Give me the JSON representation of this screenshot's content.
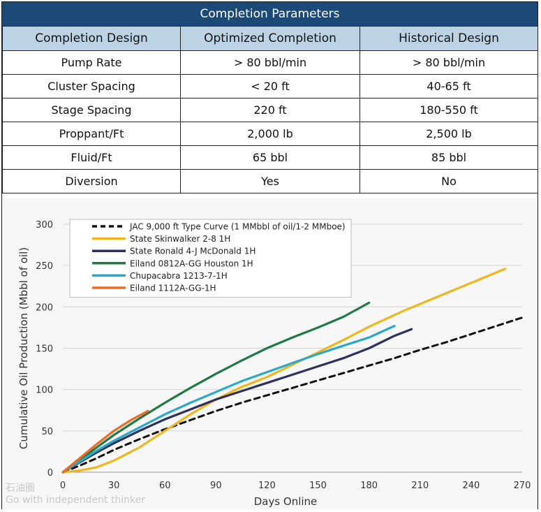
{
  "table": {
    "title": "Completion Parameters",
    "headers": [
      "Completion Design",
      "Optimized Completion",
      "Historical Design"
    ],
    "rows": [
      [
        "Pump Rate",
        "> 80 bbl/min",
        "> 80 bbl/min"
      ],
      [
        "Cluster Spacing",
        "< 20 ft",
        "40-65 ft"
      ],
      [
        "Stage Spacing",
        "220 ft",
        "180-550 ft"
      ],
      [
        "Proppant/Ft",
        "2,000 lb",
        "2,500 lb"
      ],
      [
        "Fluid/Ft",
        "65 bbl",
        "85 bbl"
      ],
      [
        "Diversion",
        "Yes",
        "No"
      ]
    ]
  },
  "chart_data": {
    "type": "line",
    "xlabel": "Days Online",
    "ylabel": "Cumulative Oil Production (Mbbl of oil)",
    "xlim": [
      0,
      270
    ],
    "ylim": [
      0,
      300
    ],
    "xticks": [
      0,
      30,
      60,
      90,
      120,
      150,
      180,
      210,
      240,
      270
    ],
    "yticks": [
      0,
      50,
      100,
      150,
      200,
      250,
      300
    ],
    "grid": "horizontal",
    "legend": "top-left",
    "series": [
      {
        "name": "JAC 9,000 ft Type Curve (1 MMbbl of oil/1-2 MMboe)",
        "color": "#111111",
        "dash": true,
        "x": [
          0,
          10,
          20,
          30,
          45,
          60,
          75,
          90,
          105,
          120,
          135,
          150,
          165,
          180,
          195,
          210,
          225,
          240,
          255,
          270
        ],
        "y": [
          0,
          8,
          17,
          27,
          40,
          52,
          63,
          74,
          84,
          93,
          102,
          111,
          120,
          129,
          138,
          148,
          157,
          167,
          177,
          187
        ]
      },
      {
        "name": "State Skinwalker 2-8 1H",
        "color": "#f2b61c",
        "dash": false,
        "x": [
          0,
          10,
          20,
          30,
          45,
          60,
          75,
          90,
          105,
          120,
          135,
          150,
          165,
          180,
          200,
          220,
          240,
          260
        ],
        "y": [
          0,
          2,
          6,
          14,
          30,
          50,
          70,
          88,
          103,
          115,
          130,
          145,
          160,
          176,
          195,
          212,
          229,
          246
        ]
      },
      {
        "name": "State Ronald 4-J McDonald 1H",
        "color": "#2e3060",
        "dash": false,
        "x": [
          0,
          10,
          20,
          30,
          45,
          60,
          75,
          90,
          105,
          120,
          135,
          150,
          165,
          180,
          195,
          205
        ],
        "y": [
          0,
          12,
          24,
          35,
          50,
          64,
          76,
          88,
          98,
          108,
          118,
          128,
          138,
          150,
          165,
          173
        ]
      },
      {
        "name": "Eiland 0812A-GG Houston 1H",
        "color": "#217a45",
        "dash": false,
        "x": [
          0,
          10,
          20,
          30,
          45,
          60,
          75,
          90,
          105,
          120,
          135,
          150,
          165,
          180
        ],
        "y": [
          0,
          15,
          30,
          45,
          65,
          84,
          102,
          119,
          135,
          150,
          163,
          175,
          188,
          205
        ]
      },
      {
        "name": "Chupacabra 1213-7-1H",
        "color": "#29a9c9",
        "dash": false,
        "x": [
          0,
          10,
          20,
          30,
          45,
          60,
          75,
          90,
          105,
          120,
          135,
          150,
          165,
          180,
          195
        ],
        "y": [
          0,
          13,
          26,
          38,
          54,
          70,
          84,
          97,
          110,
          121,
          132,
          143,
          153,
          163,
          177
        ]
      },
      {
        "name": "Eiland 1112A-GG-1H",
        "color": "#ef6a23",
        "dash": false,
        "x": [
          0,
          10,
          20,
          30,
          40,
          50
        ],
        "y": [
          0,
          17,
          34,
          50,
          63,
          74
        ]
      }
    ]
  },
  "watermark": {
    "brand": "石油圈",
    "tagline": "Go with independent thinker"
  }
}
